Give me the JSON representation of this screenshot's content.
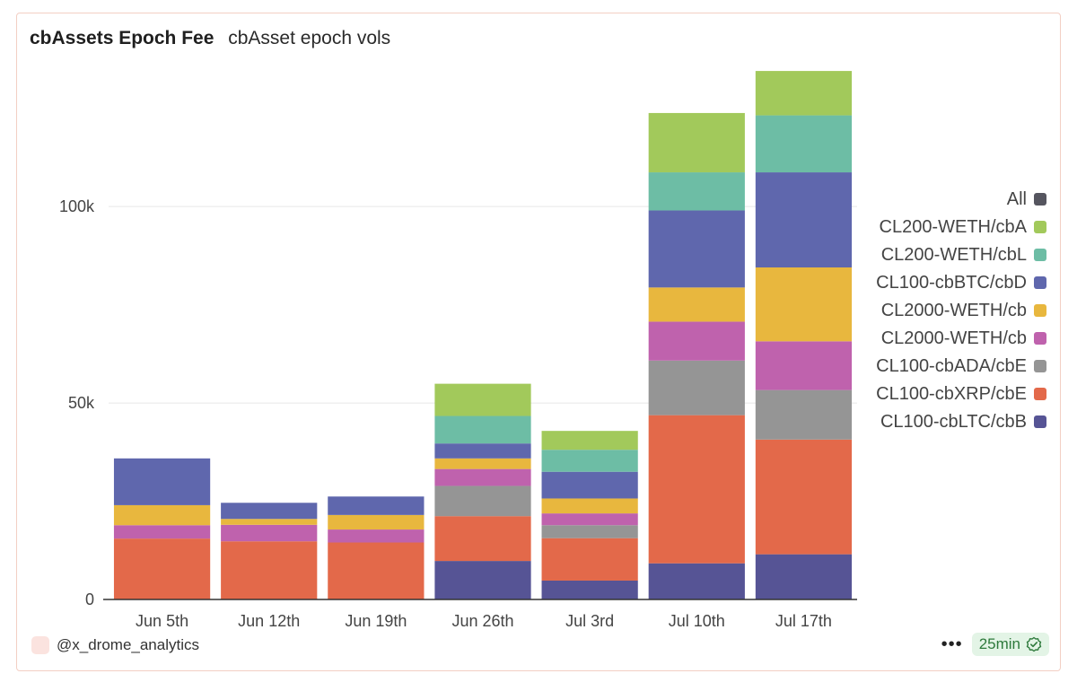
{
  "header": {
    "title": "cbAssets Epoch Fee",
    "subtitle": "cbAsset epoch vols"
  },
  "footer": {
    "author": "@x_drome_analytics",
    "menu_label": "•••",
    "refresh_age": "25min"
  },
  "colors": {
    "axis": "#333333",
    "grid": "#e6e6e6",
    "border": "#f3cfc4",
    "badge_bg": "#e3f4e6",
    "badge_fg": "#2e7a3c"
  },
  "chart_data": {
    "type": "bar",
    "stacked": true,
    "categories": [
      "Jun 5th",
      "Jun 12th",
      "Jun 19th",
      "Jun 26th",
      "Jul 3rd",
      "Jul 10th",
      "Jul 17th"
    ],
    "ylim": [
      0,
      140000
    ],
    "yticks": [
      {
        "value": 0,
        "label": "0"
      },
      {
        "value": 50000,
        "label": "50k"
      },
      {
        "value": 100000,
        "label": "100k"
      }
    ],
    "grid": true,
    "legend_position": "right",
    "legend": [
      {
        "label": "All",
        "color": "#55555f"
      },
      {
        "label": "CL200-WETH/cbA",
        "color": "#a2c95b"
      },
      {
        "label": "CL200-WETH/cbL",
        "color": "#6dbda5"
      },
      {
        "label": "CL100-cbBTC/cbD",
        "color": "#5f67ad"
      },
      {
        "label": "CL2000-WETH/cb",
        "color": "#e8b73e"
      },
      {
        "label": "CL2000-WETH/cb",
        "color": "#bf62ad"
      },
      {
        "label": "CL100-cbADA/cbE",
        "color": "#959595"
      },
      {
        "label": "CL100-cbXRP/cbE",
        "color": "#e3694a"
      },
      {
        "label": "CL100-cbLTC/cbB",
        "color": "#565495"
      }
    ],
    "series": [
      {
        "name": "CL100-cbLTC/cbB",
        "color": "#565495",
        "values": [
          0,
          0,
          0,
          9800,
          4800,
          9200,
          11500
        ]
      },
      {
        "name": "CL100-cbXRP/cbE",
        "color": "#e3694a",
        "values": [
          15500,
          14800,
          14500,
          11400,
          10800,
          37700,
          29200
        ]
      },
      {
        "name": "CL100-cbADA/cbE",
        "color": "#959595",
        "values": [
          0,
          0,
          0,
          7700,
          3300,
          13900,
          12600
        ]
      },
      {
        "name": "CL2000-WETH/cb",
        "color": "#bf62ad",
        "values": [
          3400,
          4200,
          3300,
          4300,
          3000,
          9900,
          12400
        ]
      },
      {
        "name": "CL2000-WETH/cb",
        "color": "#e8b73e",
        "values": [
          5100,
          1500,
          3700,
          2700,
          3800,
          8700,
          18800
        ]
      },
      {
        "name": "CL100-cbBTC/cbD",
        "color": "#5f67ad",
        "values": [
          11900,
          4100,
          4700,
          3800,
          6800,
          19600,
          24200
        ]
      },
      {
        "name": "CL200-WETH/cbL",
        "color": "#6dbda5",
        "values": [
          0,
          0,
          0,
          7000,
          5600,
          9700,
          14500
        ]
      },
      {
        "name": "CL200-WETH/cbA",
        "color": "#a2c95b",
        "values": [
          0,
          0,
          0,
          8200,
          4800,
          15100,
          11300
        ]
      }
    ]
  }
}
